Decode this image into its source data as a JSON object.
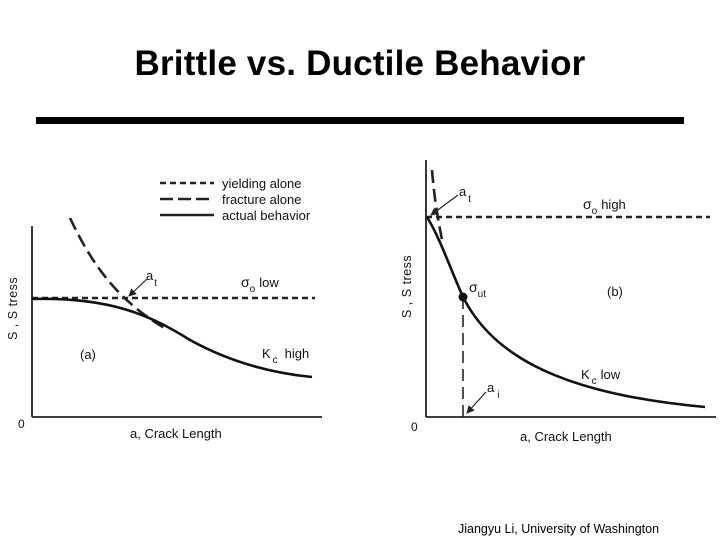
{
  "slide": {
    "title": "Brittle vs. Ductile Behavior",
    "credit": "Jiangyu Li, University of Washington"
  },
  "chart_data": [
    {
      "type": "line",
      "panel_label": "(a)",
      "xlabel": "a, Crack  Length",
      "ylabel": "S , S tress",
      "origin_label": "0",
      "legend": {
        "placement": "top",
        "entries": [
          {
            "name": "yielding alone",
            "style": "short-dash"
          },
          {
            "name": "fracture alone",
            "style": "long-dash"
          },
          {
            "name": "actual behavior",
            "style": "solid"
          }
        ]
      },
      "annotations": {
        "sigma_level": {
          "symbol": "σ",
          "sub": "o",
          "text": "low"
        },
        "transition": {
          "symbol": "a",
          "sub": "t"
        },
        "toughness": {
          "symbol": "K",
          "sub": "c",
          "text": "high"
        }
      },
      "grid": false
    },
    {
      "type": "line",
      "panel_label": "(b)",
      "xlabel": "a, Crack  Length",
      "ylabel": "S , S tress",
      "origin_label": "0",
      "annotations": {
        "sigma_level": {
          "symbol": "σ",
          "sub": "o",
          "text": "high"
        },
        "transition": {
          "symbol": "a",
          "sub": "t"
        },
        "ultimate": {
          "symbol": "σ",
          "sub": "ut"
        },
        "initial": {
          "symbol": "a",
          "sub": "i"
        },
        "toughness": {
          "symbol": "K",
          "sub": "c",
          "text": "low"
        }
      },
      "grid": false
    }
  ]
}
